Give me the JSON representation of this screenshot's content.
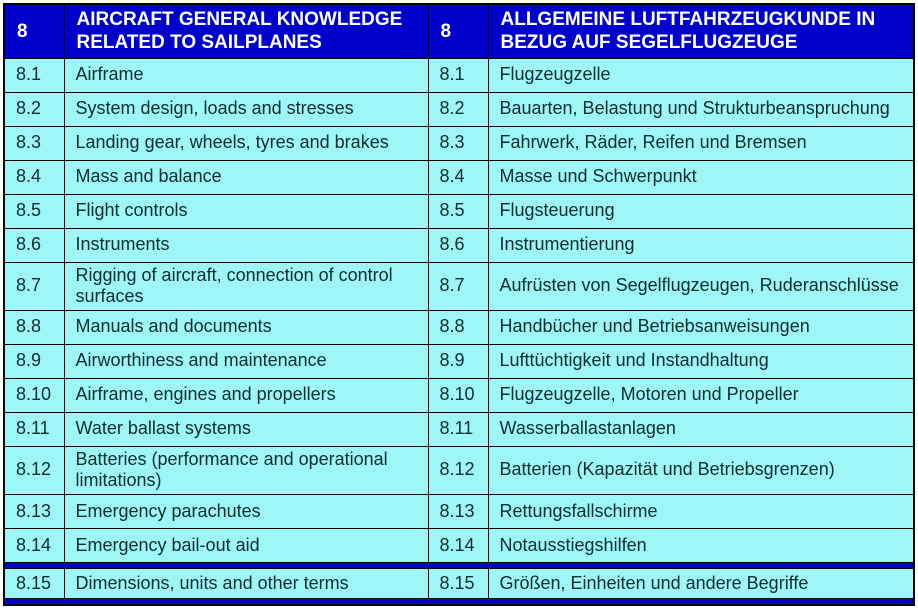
{
  "table": {
    "colors": {
      "header_bg": "#0101CC",
      "row_bg": "#9FF6F6",
      "row_text": "#0B2E2E",
      "header_text": "#FFFFFF",
      "divider": "#0101CC",
      "border": "#000000"
    },
    "header": {
      "num_en": "8",
      "title_en": "AIRCRAFT GENERAL KNOWLEDGE RELATED TO SAILPLANES",
      "num_de": "8",
      "title_de": "ALLGEMEINE LUFTFAHRZEUGKUNDE IN BEZUG AUF SEGELFLUGZEUGE"
    },
    "rows": [
      {
        "num": "8.1",
        "en": "Airframe",
        "de": "Flugzeugzelle"
      },
      {
        "num": "8.2",
        "en": "System design, loads and stresses",
        "de": "Bauarten, Belastung und Strukturbeanspruchung"
      },
      {
        "num": "8.3",
        "en": "Landing gear, wheels, tyres and brakes",
        "de": "Fahrwerk, Räder, Reifen und Bremsen"
      },
      {
        "num": "8.4",
        "en": "Mass and balance",
        "de": "Masse und Schwerpunkt"
      },
      {
        "num": "8.5",
        "en": "Flight controls",
        "de": "Flugsteuerung"
      },
      {
        "num": "8.6",
        "en": "Instruments",
        "de": "Instrumentierung"
      },
      {
        "num": "8.7",
        "en": "Rigging of aircraft, connection of control surfaces",
        "de": "Aufrüsten von Segelflugzeugen, Ruderanschlüsse"
      },
      {
        "num": "8.8",
        "en": "Manuals and documents",
        "de": "Handbücher und Betriebsanweisungen"
      },
      {
        "num": "8.9",
        "en": "Airworthiness and maintenance",
        "de": "Lufttüchtigkeit und Instandhaltung"
      },
      {
        "num": "8.10",
        "en": "Airframe, engines and propellers",
        "de": "Flugzeugzelle, Motoren und Propeller"
      },
      {
        "num": "8.11",
        "en": "Water ballast systems",
        "de": "Wasserballastanlagen"
      },
      {
        "num": "8.12",
        "en": "Batteries (performance and operational limitations)",
        "de": "Batterien (Kapazität und Betriebsgrenzen)"
      },
      {
        "num": "8.13",
        "en": "Emergency parachutes",
        "de": "Rettungsfallschirme"
      },
      {
        "num": "8.14",
        "en": "Emergency bail-out aid",
        "de": "Notausstiegshilfen"
      },
      {
        "num": "8.15",
        "en": "Dimensions, units and other terms",
        "de": "Größen, Einheiten und andere Begriffe"
      }
    ]
  }
}
